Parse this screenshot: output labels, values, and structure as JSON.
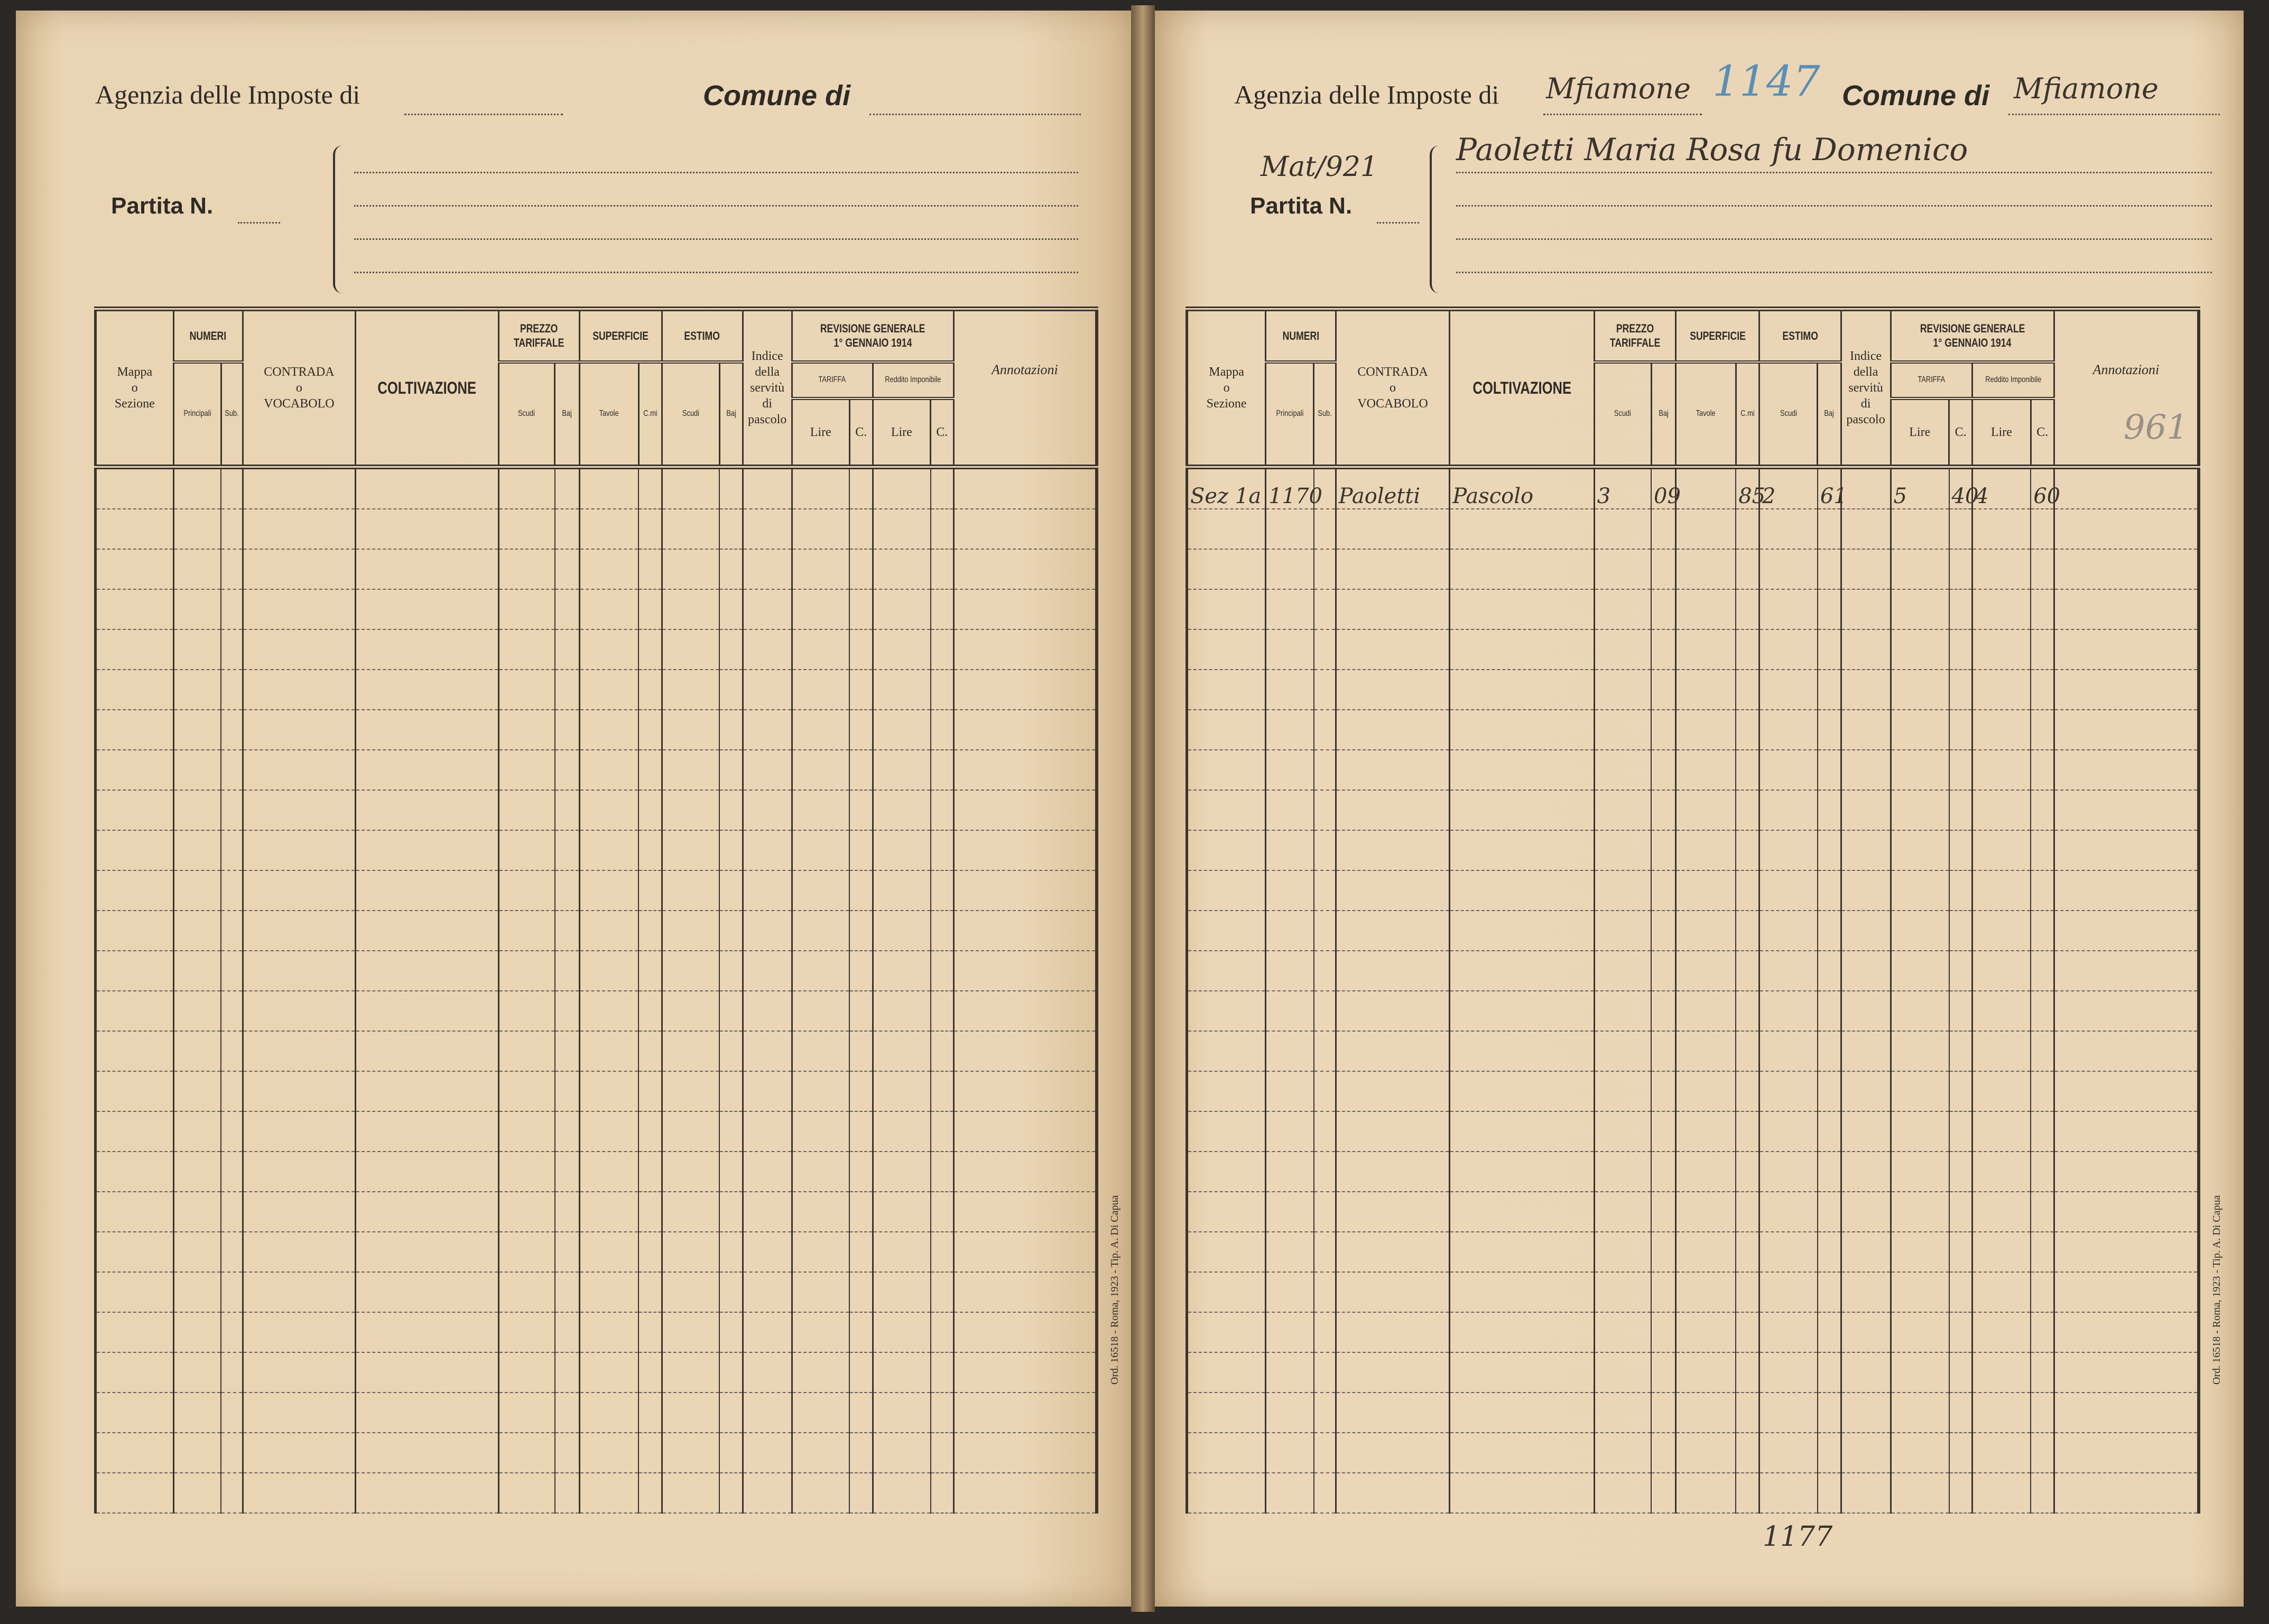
{
  "header": {
    "agenzia_label": "Agenzia delle Imposte di",
    "comune_label": "Comune di",
    "partita_label": "Partita N."
  },
  "table_headers": {
    "mappa": [
      "Mappa",
      "o",
      "Sezione"
    ],
    "numeri": "NUMERI",
    "principali": "Principali",
    "sub": "Sub.",
    "contrada": [
      "CONTRADA",
      "o",
      "VOCABOLO"
    ],
    "coltivazione": "COLTIVAZIONE",
    "prezzo_tariffale": [
      "PREZZO",
      "TARIFFALE"
    ],
    "superficie": "SUPERFICIE",
    "estimo": "ESTIMO",
    "scudi": "Scudi",
    "baj": "Baj",
    "tavole": "Tavole",
    "cmi": "C.mi",
    "indice": [
      "Indice",
      "della",
      "servitù",
      "di",
      "pascolo"
    ],
    "revisione": [
      "REVISIONE GENERALE",
      "1° GENNAIO 1914"
    ],
    "tariffa": "TARIFFA",
    "reddito": "Reddito Imponibile",
    "lire": "Lire",
    "c": "C.",
    "annotazioni": "Annotazioni"
  },
  "printer_note": "Ord. 16518 - Roma, 1923 - Tip. A. Di Capua",
  "pages": [
    {
      "agenzia_value": "",
      "comune_value": "",
      "partita_value": "",
      "owner_lines": [
        "",
        "",
        "",
        ""
      ],
      "stamp_number": "",
      "annotation_note": "",
      "footer_note": "",
      "rows": []
    },
    {
      "agenzia_value": "Mfiamone",
      "comune_value": "Mfiamone",
      "partita_value": "Mat/921",
      "owner_lines": [
        "Paoletti Maria Rosa fu Domenico",
        "",
        "",
        ""
      ],
      "stamp_number": "1147",
      "annotation_note": "961",
      "footer_note": "1177",
      "rows": [
        [
          "Sez 1a",
          "1170",
          "",
          "Paoletti",
          "Pascolo",
          "3",
          "09",
          "",
          "85",
          "2",
          "61",
          "",
          "5",
          "40",
          "4",
          "60",
          ""
        ]
      ]
    }
  ],
  "colors": {
    "paper": "#e8d3b3",
    "ink": "#3b342d",
    "blue_pencil": "#5b8fb5"
  }
}
